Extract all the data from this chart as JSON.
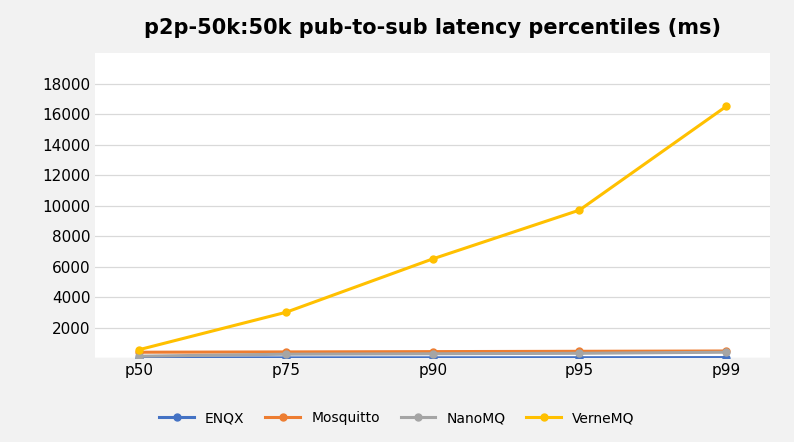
{
  "title": "p2p-50k:50k pub-to-sub latency percentiles (ms)",
  "categories": [
    "p50",
    "p75",
    "p90",
    "p95",
    "p99"
  ],
  "series": [
    {
      "name": "ENQX",
      "color": "#4472c4",
      "marker": "o",
      "values": [
        5,
        10,
        15,
        20,
        30
      ]
    },
    {
      "name": "Mosquitto",
      "color": "#ed7d31",
      "marker": "o",
      "values": [
        380,
        400,
        420,
        440,
        460
      ]
    },
    {
      "name": "NanoMQ",
      "color": "#a5a5a5",
      "marker": "o",
      "values": [
        120,
        250,
        280,
        310,
        380
      ]
    },
    {
      "name": "VerneMQ",
      "color": "#ffc000",
      "marker": "o",
      "values": [
        550,
        3000,
        6500,
        9700,
        16500
      ]
    }
  ],
  "ylim": [
    0,
    20000
  ],
  "yticks": [
    0,
    2000,
    4000,
    6000,
    8000,
    10000,
    12000,
    14000,
    16000,
    18000
  ],
  "background_color": "#f2f2f2",
  "plot_background": "#ffffff",
  "title_fontsize": 15,
  "legend_fontsize": 10,
  "tick_fontsize": 11
}
